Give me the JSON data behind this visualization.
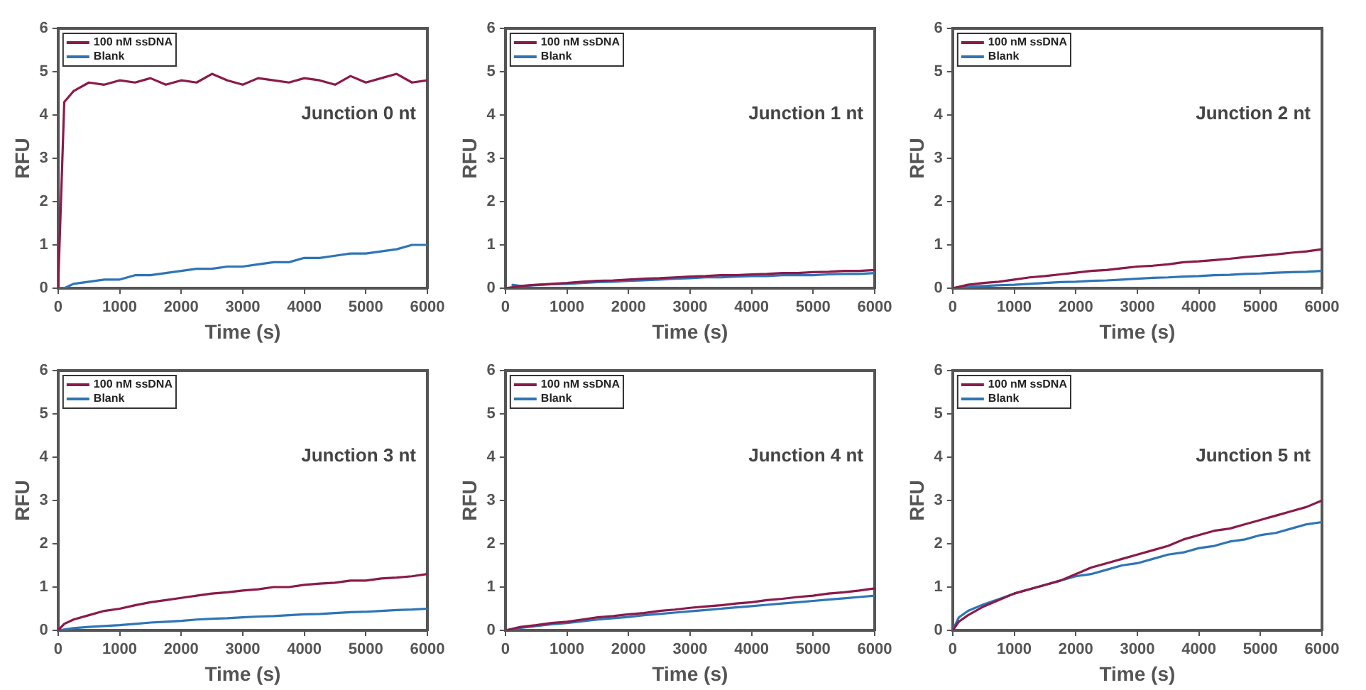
{
  "chart_data": [
    {
      "type": "line",
      "x": [
        0,
        100,
        250,
        500,
        750,
        1000,
        1250,
        1500,
        1750,
        2000,
        2250,
        2500,
        2750,
        3000,
        3250,
        3500,
        3750,
        4000,
        4250,
        4500,
        4750,
        5000,
        5250,
        5500,
        5750,
        6000
      ],
      "xlabel": "Time (s)",
      "ylabel": "RFU",
      "annotations": [
        "Junction 0 nt"
      ],
      "legend": "top left",
      "xlim": [
        0,
        6000
      ],
      "ylim": [
        0,
        6
      ],
      "xticks": [
        0,
        1000,
        2000,
        3000,
        4000,
        5000,
        6000
      ],
      "yticks": [
        0,
        1,
        2,
        3,
        4,
        5,
        6
      ],
      "series": [
        {
          "name": "100 nM ssDNA",
          "color": "#8b1a4a",
          "values": [
            0,
            4.3,
            4.55,
            4.75,
            4.7,
            4.8,
            4.75,
            4.85,
            4.7,
            4.8,
            4.75,
            4.95,
            4.8,
            4.7,
            4.85,
            4.8,
            4.75,
            4.85,
            4.8,
            4.7,
            4.9,
            4.75,
            4.85,
            4.95,
            4.75,
            4.8
          ]
        },
        {
          "name": "Blank",
          "color": "#2e75b6",
          "values": [
            0,
            0,
            0.1,
            0.15,
            0.2,
            0.2,
            0.3,
            0.3,
            0.35,
            0.4,
            0.45,
            0.45,
            0.5,
            0.5,
            0.55,
            0.6,
            0.6,
            0.7,
            0.7,
            0.75,
            0.8,
            0.8,
            0.85,
            0.9,
            1.0,
            1.0
          ]
        }
      ]
    },
    {
      "type": "line",
      "x": [
        0,
        100,
        250,
        500,
        750,
        1000,
        1250,
        1500,
        1750,
        2000,
        2250,
        2500,
        2750,
        3000,
        3250,
        3500,
        3750,
        4000,
        4250,
        4500,
        4750,
        5000,
        5250,
        5500,
        5750,
        6000
      ],
      "xlabel": "Time (s)",
      "ylabel": "RFU",
      "annotations": [
        "Junction 1 nt"
      ],
      "legend": "top left",
      "xlim": [
        0,
        6000
      ],
      "ylim": [
        0,
        6
      ],
      "xticks": [
        0,
        1000,
        2000,
        3000,
        4000,
        5000,
        6000
      ],
      "yticks": [
        0,
        1,
        2,
        3,
        4,
        5,
        6
      ],
      "series": [
        {
          "name": "100 nM ssDNA",
          "color": "#8b1a4a",
          "values": [
            0,
            0.02,
            0.05,
            0.08,
            0.1,
            0.12,
            0.15,
            0.17,
            0.18,
            0.2,
            0.22,
            0.23,
            0.25,
            0.27,
            0.28,
            0.3,
            0.3,
            0.32,
            0.33,
            0.35,
            0.35,
            0.37,
            0.38,
            0.4,
            0.4,
            0.42
          ]
        },
        {
          "name": "Blank",
          "color": "#2e75b6",
          "values": [
            null,
            0.08,
            0.05,
            0.07,
            0.09,
            0.1,
            0.12,
            0.14,
            0.15,
            0.17,
            0.18,
            0.2,
            0.22,
            0.23,
            0.25,
            0.25,
            0.27,
            0.28,
            0.28,
            0.3,
            0.3,
            0.3,
            0.32,
            0.33,
            0.33,
            0.35
          ]
        }
      ]
    },
    {
      "type": "line",
      "x": [
        0,
        100,
        250,
        500,
        750,
        1000,
        1250,
        1500,
        1750,
        2000,
        2250,
        2500,
        2750,
        3000,
        3250,
        3500,
        3750,
        4000,
        4250,
        4500,
        4750,
        5000,
        5250,
        5500,
        5750,
        6000
      ],
      "xlabel": "Time (s)",
      "ylabel": "RFU",
      "annotations": [
        "Junction 2 nt"
      ],
      "legend": "top left",
      "xlim": [
        0,
        6000
      ],
      "ylim": [
        0,
        6
      ],
      "xticks": [
        0,
        1000,
        2000,
        3000,
        4000,
        5000,
        6000
      ],
      "yticks": [
        0,
        1,
        2,
        3,
        4,
        5,
        6
      ],
      "series": [
        {
          "name": "100 nM ssDNA",
          "color": "#8b1a4a",
          "values": [
            0,
            0.03,
            0.08,
            0.12,
            0.15,
            0.2,
            0.25,
            0.28,
            0.32,
            0.36,
            0.4,
            0.42,
            0.46,
            0.5,
            0.52,
            0.55,
            0.6,
            0.62,
            0.65,
            0.68,
            0.72,
            0.75,
            0.78,
            0.82,
            0.85,
            0.9
          ]
        },
        {
          "name": "Blank",
          "color": "#2e75b6",
          "values": [
            0,
            0.01,
            0.03,
            0.05,
            0.07,
            0.08,
            0.1,
            0.12,
            0.14,
            0.15,
            0.17,
            0.18,
            0.2,
            0.22,
            0.24,
            0.25,
            0.27,
            0.28,
            0.3,
            0.31,
            0.33,
            0.34,
            0.36,
            0.37,
            0.38,
            0.4
          ]
        }
      ]
    },
    {
      "type": "line",
      "x": [
        0,
        100,
        250,
        500,
        750,
        1000,
        1250,
        1500,
        1750,
        2000,
        2250,
        2500,
        2750,
        3000,
        3250,
        3500,
        3750,
        4000,
        4250,
        4500,
        4750,
        5000,
        5250,
        5500,
        5750,
        6000
      ],
      "xlabel": "Time (s)",
      "ylabel": "RFU",
      "annotations": [
        "Junction 3 nt"
      ],
      "legend": "top left",
      "xlim": [
        0,
        6000
      ],
      "ylim": [
        0,
        6
      ],
      "xticks": [
        0,
        1000,
        2000,
        3000,
        4000,
        5000,
        6000
      ],
      "yticks": [
        0,
        1,
        2,
        3,
        4,
        5,
        6
      ],
      "series": [
        {
          "name": "100 nM ssDNA",
          "color": "#8b1a4a",
          "values": [
            0,
            0.15,
            0.25,
            0.35,
            0.45,
            0.5,
            0.58,
            0.65,
            0.7,
            0.75,
            0.8,
            0.85,
            0.88,
            0.92,
            0.95,
            1.0,
            1.0,
            1.05,
            1.08,
            1.1,
            1.15,
            1.15,
            1.2,
            1.22,
            1.25,
            1.3
          ]
        },
        {
          "name": "Blank",
          "color": "#2e75b6",
          "values": [
            0,
            0.02,
            0.05,
            0.08,
            0.1,
            0.12,
            0.15,
            0.18,
            0.2,
            0.22,
            0.25,
            0.27,
            0.28,
            0.3,
            0.32,
            0.33,
            0.35,
            0.37,
            0.38,
            0.4,
            0.42,
            0.43,
            0.45,
            0.47,
            0.48,
            0.5
          ]
        }
      ]
    },
    {
      "type": "line",
      "x": [
        0,
        100,
        250,
        500,
        750,
        1000,
        1250,
        1500,
        1750,
        2000,
        2250,
        2500,
        2750,
        3000,
        3250,
        3500,
        3750,
        4000,
        4250,
        4500,
        4750,
        5000,
        5250,
        5500,
        5750,
        6000
      ],
      "xlabel": "Time (s)",
      "ylabel": "RFU",
      "annotations": [
        "Junction 4 nt"
      ],
      "legend": "top left",
      "xlim": [
        0,
        6000
      ],
      "ylim": [
        0,
        6
      ],
      "xticks": [
        0,
        1000,
        2000,
        3000,
        4000,
        5000,
        6000
      ],
      "yticks": [
        0,
        1,
        2,
        3,
        4,
        5,
        6
      ],
      "series": [
        {
          "name": "100 nM ssDNA",
          "color": "#8b1a4a",
          "values": [
            0,
            0.03,
            0.08,
            0.12,
            0.17,
            0.2,
            0.25,
            0.3,
            0.33,
            0.37,
            0.4,
            0.45,
            0.48,
            0.52,
            0.55,
            0.58,
            0.62,
            0.65,
            0.7,
            0.73,
            0.77,
            0.8,
            0.85,
            0.88,
            0.92,
            0.97
          ]
        },
        {
          "name": "Blank",
          "color": "#2e75b6",
          "values": [
            0,
            0.02,
            0.06,
            0.1,
            0.14,
            0.17,
            0.21,
            0.25,
            0.28,
            0.31,
            0.35,
            0.38,
            0.41,
            0.44,
            0.47,
            0.5,
            0.53,
            0.56,
            0.59,
            0.62,
            0.65,
            0.68,
            0.71,
            0.74,
            0.77,
            0.8
          ]
        }
      ]
    },
    {
      "type": "line",
      "x": [
        0,
        100,
        250,
        500,
        750,
        1000,
        1250,
        1500,
        1750,
        2000,
        2250,
        2500,
        2750,
        3000,
        3250,
        3500,
        3750,
        4000,
        4250,
        4500,
        4750,
        5000,
        5250,
        5500,
        5750,
        6000
      ],
      "xlabel": "Time (s)",
      "ylabel": "RFU",
      "annotations": [
        "Junction 5 nt"
      ],
      "legend": "top left",
      "xlim": [
        0,
        6000
      ],
      "ylim": [
        0,
        6
      ],
      "xticks": [
        0,
        1000,
        2000,
        3000,
        4000,
        5000,
        6000
      ],
      "yticks": [
        0,
        1,
        2,
        3,
        4,
        5,
        6
      ],
      "series": [
        {
          "name": "100 nM ssDNA",
          "color": "#8b1a4a",
          "values": [
            0,
            0.2,
            0.35,
            0.55,
            0.7,
            0.85,
            0.95,
            1.05,
            1.15,
            1.3,
            1.45,
            1.55,
            1.65,
            1.75,
            1.85,
            1.95,
            2.1,
            2.2,
            2.3,
            2.35,
            2.45,
            2.55,
            2.65,
            2.75,
            2.85,
            3.0
          ]
        },
        {
          "name": "Blank",
          "color": "#2e75b6",
          "values": [
            0,
            0.3,
            0.45,
            0.6,
            0.72,
            0.85,
            0.95,
            1.05,
            1.15,
            1.25,
            1.3,
            1.4,
            1.5,
            1.55,
            1.65,
            1.75,
            1.8,
            1.9,
            1.95,
            2.05,
            2.1,
            2.2,
            2.25,
            2.35,
            2.45,
            2.5
          ]
        }
      ]
    }
  ]
}
